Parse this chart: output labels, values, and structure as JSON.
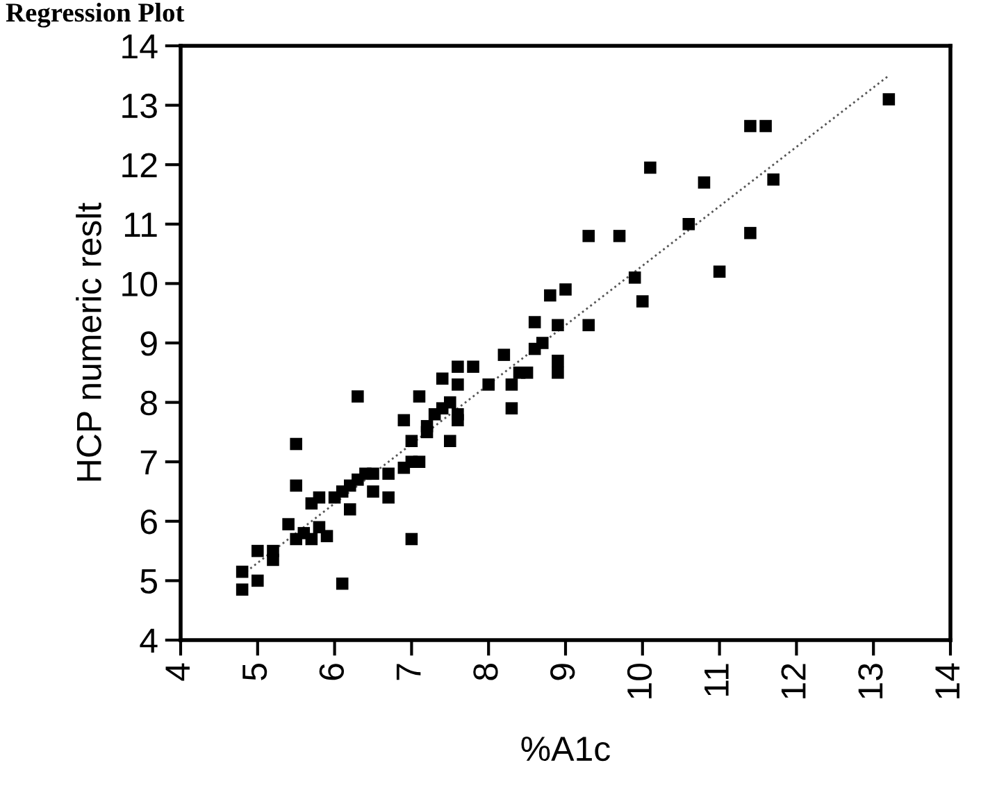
{
  "chart_data": {
    "type": "scatter",
    "title": "Regression Plot",
    "xlabel": "%A1c",
    "ylabel": "HCP numeric reslt",
    "xlim": [
      4,
      14
    ],
    "ylim": [
      4,
      14
    ],
    "xticks": [
      4,
      5,
      6,
      7,
      8,
      9,
      10,
      11,
      12,
      13,
      14
    ],
    "yticks": [
      4,
      5,
      6,
      7,
      8,
      9,
      10,
      11,
      12,
      13,
      14
    ],
    "grid": false,
    "marker": "square",
    "series": [
      {
        "color": "#000000",
        "x": [
          13.2,
          11.4,
          11.6,
          10.1,
          10.8,
          11.7,
          10.6,
          11.4,
          9.3,
          9.7,
          11.0,
          9.9,
          10.0,
          9.3,
          9.0,
          8.8,
          8.6,
          8.9,
          8.9,
          8.9,
          8.5,
          8.4,
          8.7,
          8.6,
          8.3,
          8.3,
          8.2,
          8.0,
          7.8,
          7.6,
          7.6,
          7.4,
          7.5,
          7.4,
          7.3,
          7.6,
          7.6,
          7.1,
          6.9,
          7.2,
          7.2,
          7.0,
          7.5,
          6.3,
          7.1,
          7.0,
          6.9,
          6.7,
          6.5,
          6.4,
          6.3,
          6.2,
          6.1,
          6.0,
          6.7,
          6.5,
          5.5,
          5.5,
          5.8,
          5.7,
          6.2,
          5.4,
          5.6,
          5.5,
          5.7,
          5.8,
          5.9,
          5.2,
          5.0,
          5.2,
          4.8,
          4.8,
          5.0,
          6.1,
          7.0
        ],
        "values": [
          13.1,
          12.65,
          12.65,
          11.95,
          11.7,
          11.75,
          11.0,
          10.85,
          10.8,
          10.8,
          10.2,
          10.1,
          9.7,
          9.3,
          9.9,
          9.8,
          9.35,
          9.3,
          8.7,
          8.5,
          8.5,
          8.5,
          9.0,
          8.9,
          7.9,
          8.3,
          8.8,
          8.3,
          8.6,
          8.6,
          8.3,
          8.4,
          8.0,
          7.9,
          7.8,
          7.8,
          7.7,
          8.1,
          7.7,
          7.6,
          7.5,
          7.35,
          7.35,
          8.1,
          7.0,
          7.0,
          6.9,
          6.8,
          6.8,
          6.8,
          6.7,
          6.6,
          6.5,
          6.4,
          6.4,
          6.5,
          7.3,
          6.6,
          6.4,
          6.3,
          6.2,
          5.95,
          5.8,
          5.7,
          5.7,
          5.9,
          5.75,
          5.5,
          5.5,
          5.35,
          5.15,
          4.85,
          5.0,
          4.95,
          5.7
        ]
      },
      {
        "type": "line",
        "color": "#555555",
        "line_style": "dotted",
        "marker": "none",
        "x": [
          4.8,
          13.2
        ],
        "values": [
          5.1,
          13.5
        ]
      }
    ]
  }
}
